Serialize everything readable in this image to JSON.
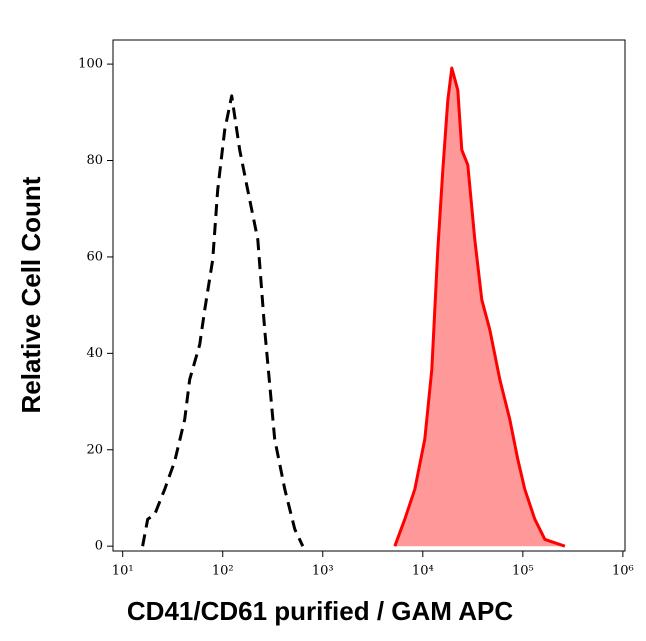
{
  "chart_data": {
    "type": "line",
    "xlabel": "CD41/CD61 purified / GAM APC",
    "ylabel": "Relative Cell Count",
    "xscale": "log",
    "xlim": [
      8,
      1050000
    ],
    "ylim": [
      -1,
      105
    ],
    "xticks": [
      {
        "value": 10,
        "label": "10¹"
      },
      {
        "value": 100,
        "label": "10²"
      },
      {
        "value": 1000,
        "label": "10³"
      },
      {
        "value": 10000,
        "label": "10⁴"
      },
      {
        "value": 100000,
        "label": "10⁵"
      },
      {
        "value": 1000000,
        "label": "10⁶"
      }
    ],
    "yticks": [
      0,
      20,
      40,
      60,
      80,
      100
    ],
    "series": [
      {
        "color": "#000000",
        "dash": true,
        "x": [
          15.8,
          17.8,
          20.9,
          26.3,
          33.1,
          41.7,
          46.8,
          58.9,
          66.1,
          79.4,
          89.1,
          104.7,
          123,
          147.9,
          177.8,
          223.9,
          263,
          331,
          417,
          525,
          631
        ],
        "values": [
          0,
          5.6,
          6.6,
          11.8,
          17.6,
          26.3,
          34.6,
          41.8,
          49,
          59.4,
          73.9,
          86.3,
          93.4,
          82.2,
          73.9,
          63.6,
          44.9,
          22.2,
          11.8,
          3.5,
          0
        ]
      },
      {
        "color": "#ff0000",
        "fill": "#ff9999",
        "dash": false,
        "x": [
          5248,
          6607,
          8318,
          10471,
          12303,
          14125,
          15849,
          17783,
          19498,
          22387,
          24547,
          28184,
          33113,
          38905,
          46774,
          58884,
          74131,
          89125,
          104713,
          131826,
          165959,
          263027
        ],
        "values": [
          0,
          5.6,
          11.8,
          22.2,
          36.6,
          61.5,
          78,
          92.5,
          99.2,
          94.6,
          82.2,
          79.1,
          63.6,
          51.1,
          44.9,
          34.6,
          26.3,
          18,
          11.8,
          5.6,
          1.4,
          0
        ]
      }
    ]
  }
}
